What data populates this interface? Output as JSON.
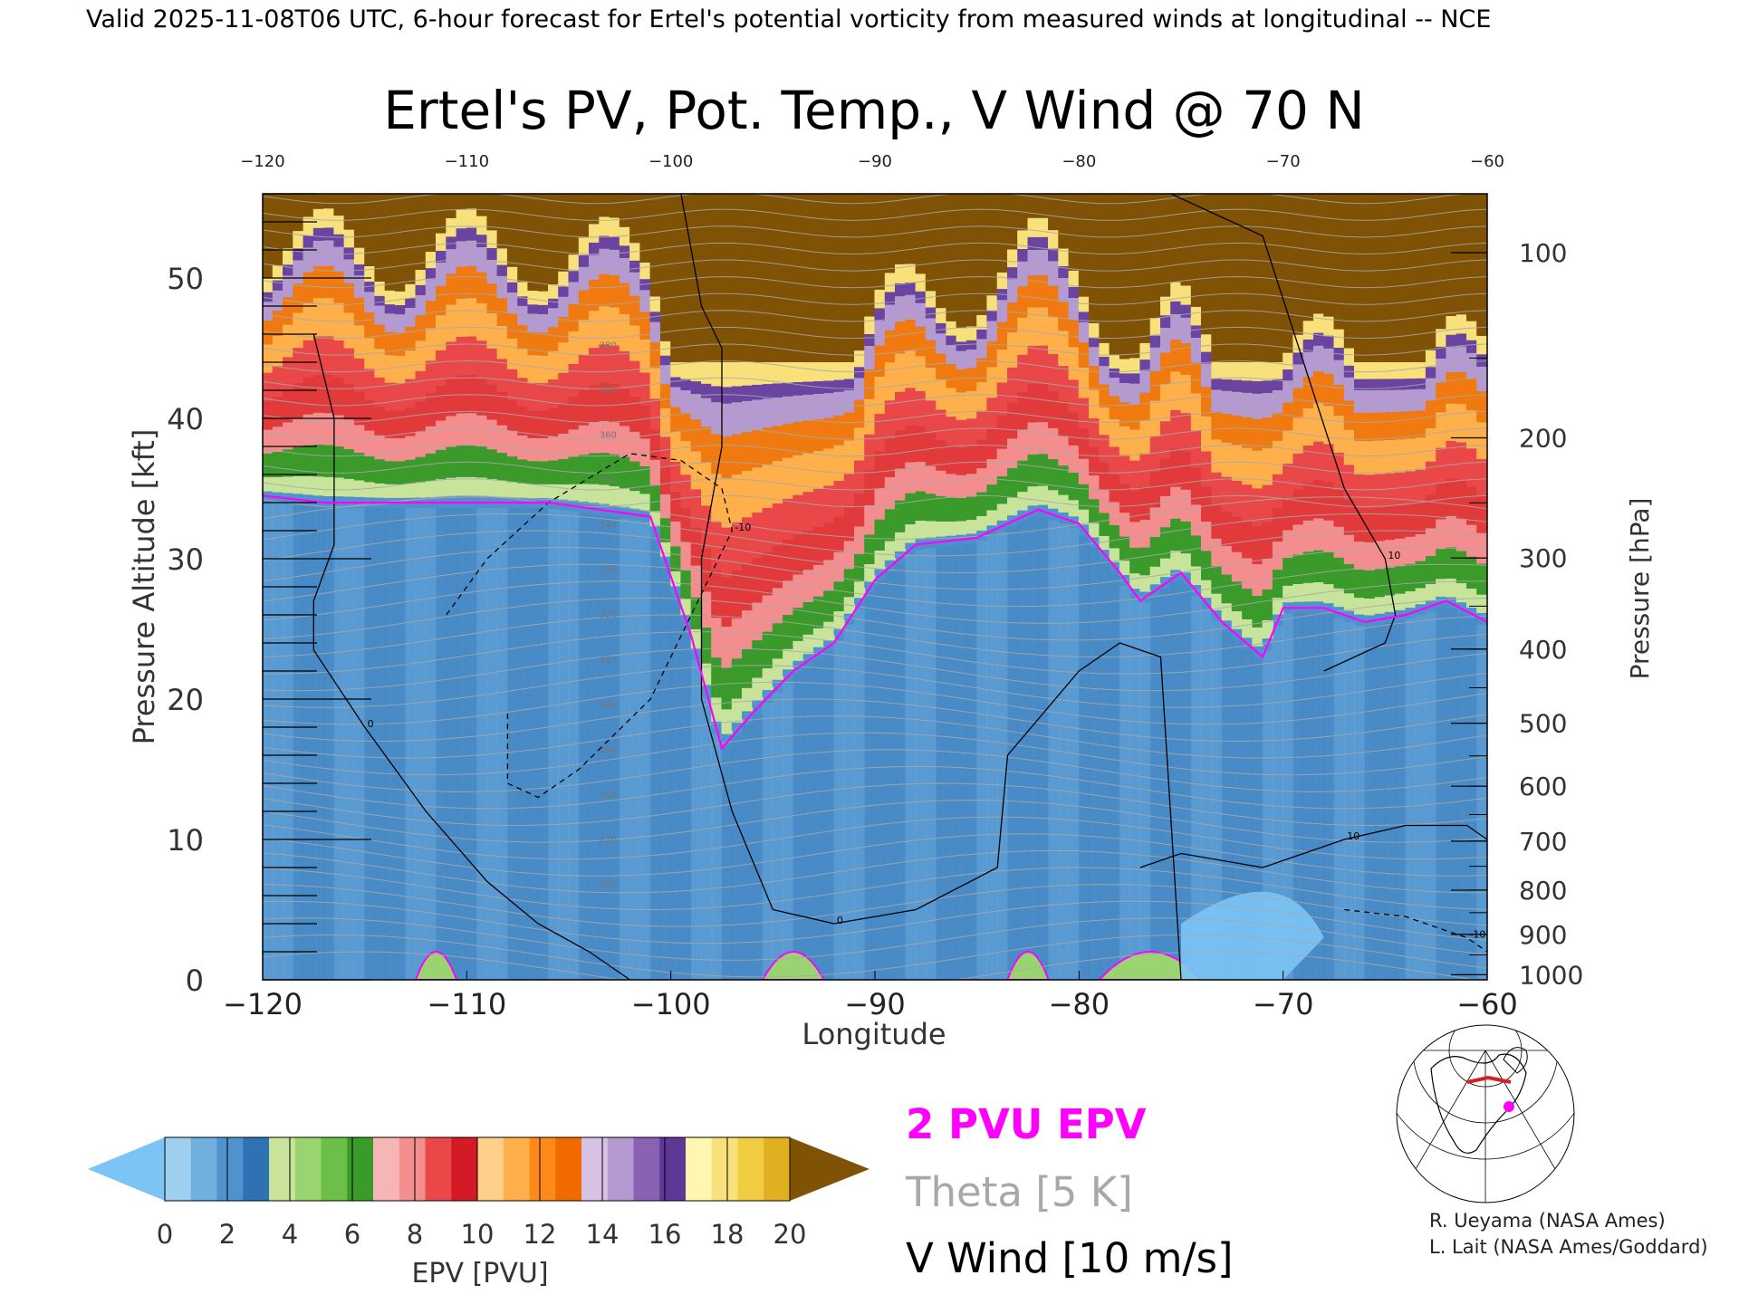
{
  "header": "Valid 2025-11-08T06 UTC, 6-hour forecast for Ertel's potential vorticity from measured winds at longitudinal -- NCE",
  "title": "Ertel's PV, Pot. Temp., V Wind @ 70 N",
  "legend": {
    "pv_contour_label": "2 PVU EPV",
    "theta_label": "Theta [5 K]",
    "wind_label": "V Wind [10 m/s]",
    "pv_contour_color": "#ff00ff",
    "theta_color": "#a8a8a8",
    "wind_color": "#000000"
  },
  "colorbar": {
    "label": "EPV [PVU]",
    "ticks": [
      "0",
      "2",
      "4",
      "6",
      "8",
      "10",
      "12",
      "14",
      "16",
      "18",
      "20"
    ],
    "under_color": "#7cc4f4",
    "over_color": "#7f5206",
    "colors": [
      "#9fcfee",
      "#6fb0df",
      "#4f92ce",
      "#2f72b4",
      "#c8e49a",
      "#9ad470",
      "#6cc04a",
      "#3a9a2a",
      "#f7b6b6",
      "#f48e8e",
      "#ea4848",
      "#d41a24",
      "#ffd08a",
      "#ffb04a",
      "#ff8a1a",
      "#f06a00",
      "#d8c2e4",
      "#b49ad0",
      "#8a62b4",
      "#5e3896",
      "#fff6b0",
      "#f8e07a",
      "#f0cc40",
      "#e0b020"
    ]
  },
  "credits": [
    "R. Ueyama (NASA Ames)",
    "L. Lait (NASA Ames/Goddard)"
  ],
  "chart_data": {
    "type": "heatmap",
    "title": "Ertel's PV, Pot. Temp., V Wind @ 70 N",
    "xlabel": "Longitude",
    "ylabel": "Pressure Altitude [kft]",
    "y2label": "Pressure [hPa]",
    "xlim": [
      -120,
      -60
    ],
    "ylim": [
      0,
      56
    ],
    "x_ticks": [
      "−120",
      "−110",
      "−100",
      "−90",
      "−80",
      "−70",
      "−60"
    ],
    "x_ticks_top": [
      "−120",
      "−110",
      "−100",
      "−90",
      "−80",
      "−70",
      "−60"
    ],
    "y_ticks": [
      "0",
      "10",
      "20",
      "30",
      "40",
      "50"
    ],
    "pressure_ticks": [
      {
        "label": "100",
        "value": 100
      },
      {
        "label": "200",
        "value": 200
      },
      {
        "label": "300",
        "value": 300
      },
      {
        "label": "400",
        "value": 400
      },
      {
        "label": "500",
        "value": 500
      },
      {
        "label": "600",
        "value": 600
      },
      {
        "label": "700",
        "value": 700
      },
      {
        "label": "800",
        "value": 800
      },
      {
        "label": "900",
        "value": 900
      },
      {
        "label": "1000",
        "value": 1000
      }
    ],
    "tropopause_2pvu_kft": {
      "lon": [
        -120,
        -117,
        -112,
        -106,
        -101,
        -99,
        -97.5,
        -96,
        -94,
        -92,
        -90,
        -88,
        -85,
        -82,
        -80,
        -78,
        -77,
        -75,
        -73,
        -71,
        -70,
        -68,
        -66,
        -64,
        -62,
        -60
      ],
      "alt": [
        34.5,
        34,
        34,
        34,
        33,
        24.5,
        16.5,
        19,
        22,
        24,
        28.5,
        31,
        31.5,
        33.5,
        32.5,
        29,
        27,
        29,
        25.5,
        23,
        26.5,
        26.5,
        25.5,
        26,
        27,
        25.5
      ]
    },
    "v_wind_contours": [
      {
        "label": "0",
        "lon": [
          -117.5,
          -116.5,
          -116.5,
          -117.5,
          -117.5,
          -115,
          -112,
          -109,
          -106.5,
          -104,
          -102
        ],
        "alt": [
          46,
          40,
          31,
          27,
          23.5,
          18,
          12,
          7,
          4,
          2,
          0
        ]
      },
      {
        "label": "0",
        "lon": [
          -99.5,
          -98.5,
          -97.5,
          -97.5,
          -98.5,
          -98.5,
          -97,
          -95,
          -92,
          -88,
          -84,
          -83.5,
          -80,
          -78,
          -76,
          -75
        ],
        "alt": [
          56,
          48,
          45,
          38,
          30,
          20,
          12,
          5,
          4,
          5,
          8,
          16,
          22,
          24,
          23,
          0
        ]
      },
      {
        "label": "10",
        "lon": [
          -77,
          -75,
          -71,
          -67,
          -64,
          -61,
          -60
        ],
        "alt": [
          8,
          9,
          8,
          10,
          11,
          11,
          10
        ]
      },
      {
        "label": "10",
        "lon": [
          -75.5,
          -71,
          -69,
          -67,
          -65,
          -64.5,
          -65,
          -66.5,
          -68
        ],
        "alt": [
          56,
          53,
          44,
          35,
          30,
          26,
          24,
          23,
          22
        ]
      },
      {
        "label": "-10",
        "lon": [
          -111,
          -109,
          -106,
          -102,
          -99.5,
          -97.5,
          -97,
          -99,
          -101,
          -104.5,
          -106.5,
          -108,
          -108
        ],
        "alt": [
          26,
          30,
          34,
          37.5,
          37,
          35,
          32,
          26,
          20,
          15,
          13,
          14,
          19
        ]
      },
      {
        "label": "-10",
        "lon": [
          -67,
          -64,
          -61,
          -60
        ],
        "alt": [
          5,
          4.5,
          3,
          2
        ]
      }
    ],
    "theta_labels": [
      "380",
      "370",
      "360",
      "350",
      "340",
      "330",
      "320",
      "310",
      "300",
      "290",
      "280",
      "270",
      "260"
    ],
    "series": []
  }
}
